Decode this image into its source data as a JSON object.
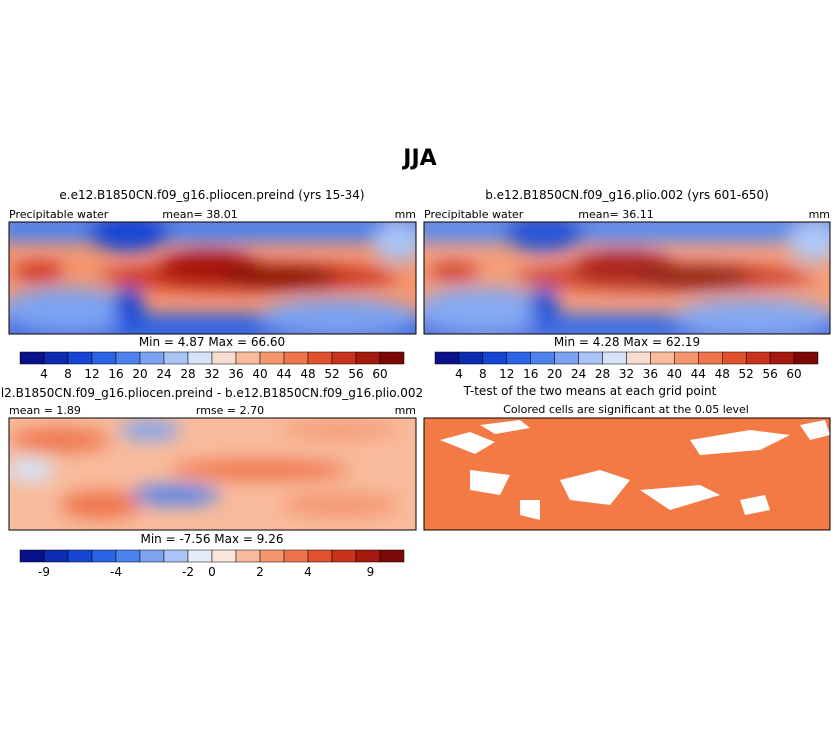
{
  "title": "JJA",
  "panels": [
    {
      "title": "e.e12.B1850CN.f09_g16.pliocen.preind (yrs 15-34)",
      "variable": "Precipitable water",
      "mean": "mean=  38.01",
      "units": "mm",
      "stats": "Min =   4.87  Max =   66.60"
    },
    {
      "title": "b.e12.B1850CN.f09_g16.plio.002 (yrs 601-650)",
      "variable": "Precipitable water",
      "mean": "mean=  36.11",
      "units": "mm",
      "stats": "Min =   4.28  Max =   62.19"
    },
    {
      "title": "l2.B1850CN.f09_g16.pliocen.preind - b.e12.B1850CN.f09_g16.plio.002",
      "mean": "mean =  1.89",
      "rmse": "rmse =   2.70",
      "units": "mm",
      "stats": "Min =   -7.56  Max =   9.26"
    },
    {
      "title": "T-test of the two means at each grid point",
      "subtitle": "Colored cells are significant at the 0.05 level"
    }
  ],
  "colorbar": {
    "labels": [
      4,
      8,
      12,
      16,
      20,
      24,
      28,
      32,
      36,
      40,
      44,
      48,
      52,
      56,
      60
    ],
    "colors": [
      "#0a128a",
      "#0b2bb0",
      "#1746d4",
      "#2c64e6",
      "#4d82ee",
      "#7ba3f2",
      "#a9c4f5",
      "#d6e3f8",
      "#f7ddd0",
      "#f8bb9c",
      "#f4976f",
      "#ee744b",
      "#e2522f",
      "#c9321b",
      "#a6190e",
      "#7c0805"
    ]
  },
  "diff_colorbar": {
    "labels": [
      -9,
      -4,
      -2,
      0,
      2,
      4,
      9
    ],
    "colors": [
      "#0a128a",
      "#0b2bb0",
      "#1746d4",
      "#2c64e6",
      "#4d82ee",
      "#7ba3f2",
      "#a9c4f5",
      "#e4ecf8",
      "#fbe6dc",
      "#f8bb9c",
      "#f4976f",
      "#ee744b",
      "#e2522f",
      "#c9321b",
      "#a6190e",
      "#7c0805"
    ]
  }
}
